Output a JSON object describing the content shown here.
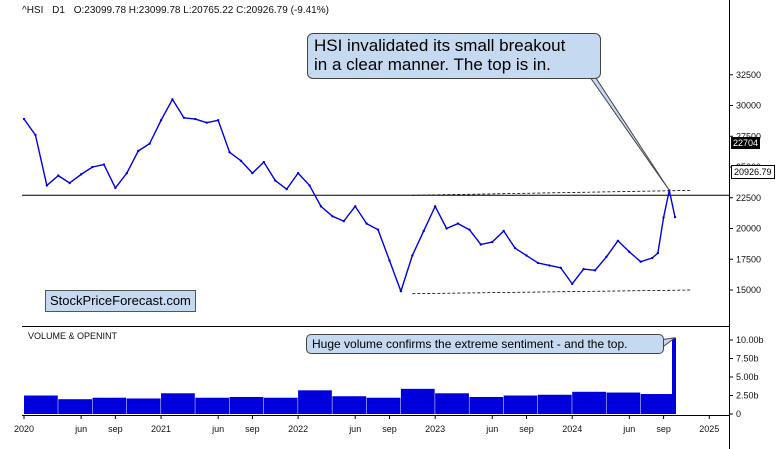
{
  "header": {
    "symbol": "^HSI",
    "timeframe": "D1",
    "ohlc": "O:23099.78  H:23099.78  L:20765.22  C:20926.79  (-9.41%)"
  },
  "watermark": "StockPriceForecast.com",
  "annotations": {
    "main_line1": "HSI invalidated its small breakout",
    "main_line2": "in a clear manner. The top is in.",
    "volume_note": "Huge volume confirms the extreme sentiment - and the top."
  },
  "price_boxes": {
    "level": "22704",
    "last": "20926.79"
  },
  "volume_panel": {
    "title": "VOLUME & OPENINT"
  },
  "colors": {
    "series": "#0000dd",
    "callout_fill": "#c5d9f1"
  },
  "chart_data": [
    {
      "type": "line",
      "title": "^HSI D1",
      "series": [
        {
          "name": "^HSI",
          "x": [
            "2020-01",
            "2020-02",
            "2020-03",
            "2020-04",
            "2020-05",
            "2020-06",
            "2020-07",
            "2020-08",
            "2020-09",
            "2020-10",
            "2020-11",
            "2020-12",
            "2021-01",
            "2021-02",
            "2021-03",
            "2021-04",
            "2021-05",
            "2021-06",
            "2021-07",
            "2021-08",
            "2021-09",
            "2021-10",
            "2021-11",
            "2021-12",
            "2022-01",
            "2022-02",
            "2022-03",
            "2022-04",
            "2022-05",
            "2022-06",
            "2022-07",
            "2022-08",
            "2022-09",
            "2022-10",
            "2022-11",
            "2022-12",
            "2023-01",
            "2023-02",
            "2023-03",
            "2023-04",
            "2023-05",
            "2023-06",
            "2023-07",
            "2023-08",
            "2023-09",
            "2023-10",
            "2023-11",
            "2023-12",
            "2024-01",
            "2024-02",
            "2024-03",
            "2024-04",
            "2024-05",
            "2024-06",
            "2024-07",
            "2024-08",
            "2024-09-early",
            "2024-09-late",
            "2024-10-peak",
            "2024-10-close"
          ],
          "y": [
            28900,
            27600,
            23500,
            24300,
            23700,
            24400,
            25000,
            25200,
            23300,
            24500,
            26300,
            26900,
            28800,
            30500,
            29000,
            28900,
            28600,
            28800,
            26200,
            25500,
            24500,
            25400,
            23900,
            23200,
            24500,
            23500,
            21800,
            21000,
            20600,
            21800,
            20400,
            19900,
            17400,
            14900,
            17800,
            19800,
            21800,
            20000,
            20400,
            19900,
            18700,
            18900,
            19800,
            18400,
            17800,
            17200,
            17000,
            16800,
            15500,
            16700,
            16600,
            17700,
            19000,
            18100,
            17300,
            17600,
            18000,
            20900,
            23100,
            20927
          ]
        }
      ],
      "xticks": [
        "2020",
        "jun",
        "sep",
        "2021",
        "jun",
        "sep",
        "2022",
        "jun",
        "sep",
        "2023",
        "jun",
        "sep",
        "2024",
        "jun",
        "sep",
        "2025"
      ],
      "yticks": [
        15000,
        17500,
        20000,
        22500,
        25000,
        27500,
        30000,
        32500
      ],
      "ylim": [
        14000,
        33000
      ],
      "reference_lines": {
        "horizontal_level": 22704,
        "upper_trendline": [
          [
            "2022-10-31",
            22700
          ],
          [
            "2024-10-31",
            23100
          ]
        ],
        "lower_trendline": [
          [
            "2022-10-31",
            14700
          ],
          [
            "2024-10-31",
            15000
          ]
        ]
      },
      "grid": false
    },
    {
      "type": "bar",
      "title": "VOLUME & OPENINT",
      "x": [
        "2020-Q1",
        "2020-Q2",
        "2020-Q3",
        "2020-Q4",
        "2021-Q1",
        "2021-Q2",
        "2021-Q3",
        "2021-Q4",
        "2022-Q1",
        "2022-Q2",
        "2022-Q3",
        "2022-Q4",
        "2023-Q1",
        "2023-Q2",
        "2023-Q3",
        "2023-Q4",
        "2024-Q1",
        "2024-Q2",
        "2024-Q3",
        "2024-Oct"
      ],
      "values": [
        2.5,
        2.0,
        2.2,
        2.1,
        2.8,
        2.2,
        2.3,
        2.2,
        3.2,
        2.4,
        2.2,
        3.4,
        2.8,
        2.3,
        2.5,
        2.6,
        3.0,
        2.9,
        2.7,
        10.3
      ],
      "yticks": [
        "0",
        "2.50b",
        "5.00b",
        "7.50b",
        "10.00b"
      ],
      "ylim": [
        0,
        11.5
      ]
    }
  ]
}
